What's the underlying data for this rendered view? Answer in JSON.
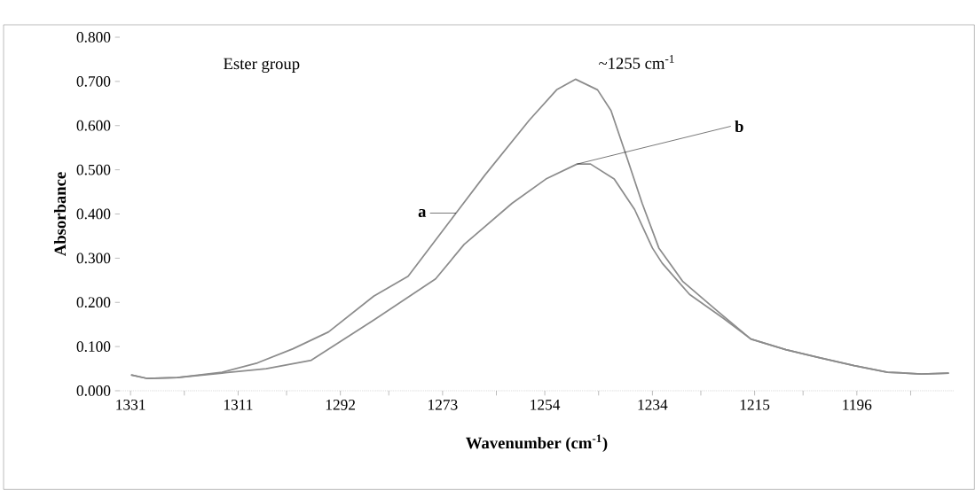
{
  "chart_data": {
    "type": "line",
    "xlabel": "Wavenumber (cm$^{-1}$)",
    "ylabel": "Absorbance",
    "annotations": [
      "Ester group",
      "~1255 cm$^{-1}$"
    ],
    "xlim": [
      1333,
      1178
    ],
    "ylim": [
      0,
      0.8
    ],
    "xticks": [
      1331,
      {
        "value": 1321,
        "label": null
      },
      1311,
      {
        "value": 1302,
        "label": null
      },
      1292,
      {
        "value": 1283,
        "label": null
      },
      1273,
      {
        "value": 1263,
        "label": null
      },
      1254,
      {
        "value": 1244,
        "label": null
      },
      1234,
      {
        "value": 1225,
        "label": null
      },
      1215,
      {
        "value": 1206,
        "label": null
      },
      1196,
      {
        "value": 1186,
        "label": null
      }
    ],
    "yticks": [
      {
        "value": 0,
        "label": "0.000"
      },
      {
        "value": 0.1,
        "label": "0.100"
      },
      {
        "value": 0.2,
        "label": "0.200"
      },
      {
        "value": 0.3,
        "label": "0.300"
      },
      {
        "value": 0.4,
        "label": "0.400"
      },
      {
        "value": 0.5,
        "label": "0.500"
      },
      {
        "value": 0.6,
        "label": "0.600"
      },
      {
        "value": 0.7,
        "label": "0.700"
      },
      {
        "value": 0.8,
        "label": "0.800"
      }
    ],
    "grid": false,
    "legend": false,
    "marker": "none",
    "line_style": "solid",
    "series": [
      {
        "name": "a",
        "color": "#8c8c8c",
        "x": [
          1330.9,
          1328.0,
          1322.3,
          1314.0,
          1307.4,
          1300.8,
          1294.2,
          1285.8,
          1279.4,
          1270.5,
          1265.2,
          1256.9,
          1251.8,
          1248.3,
          1244.2,
          1241.7,
          1239.1,
          1235.9,
          1232.8,
          1228.4,
          1221.9,
          1215.7,
          1209.2,
          1203.0,
          1196.5,
          1190.3,
          1184.0,
          1178.9
        ],
        "values": [
          0.036,
          0.028,
          0.03,
          0.042,
          0.063,
          0.095,
          0.133,
          0.214,
          0.259,
          0.402,
          0.487,
          0.612,
          0.681,
          0.705,
          0.681,
          0.634,
          0.541,
          0.424,
          0.323,
          0.248,
          0.18,
          0.117,
          0.093,
          0.075,
          0.057,
          0.042,
          0.038,
          0.04
        ]
      },
      {
        "name": "b",
        "color": "#8c8c8c",
        "x": [
          1330.9,
          1328.0,
          1322.3,
          1314.0,
          1305.8,
          1297.4,
          1285.8,
          1274.3,
          1269.0,
          1260.1,
          1253.8,
          1248.0,
          1245.5,
          1241.1,
          1237.3,
          1234.0,
          1232.2,
          1227.1,
          1220.8,
          1215.7,
          1209.2,
          1203.0,
          1196.5,
          1190.3,
          1184.0,
          1178.9
        ],
        "values": [
          0.036,
          0.028,
          0.03,
          0.04,
          0.05,
          0.069,
          0.16,
          0.253,
          0.331,
          0.424,
          0.479,
          0.513,
          0.513,
          0.479,
          0.41,
          0.323,
          0.289,
          0.218,
          0.164,
          0.117,
          0.093,
          0.075,
          0.057,
          0.042,
          0.038,
          0.04
        ]
      }
    ]
  }
}
